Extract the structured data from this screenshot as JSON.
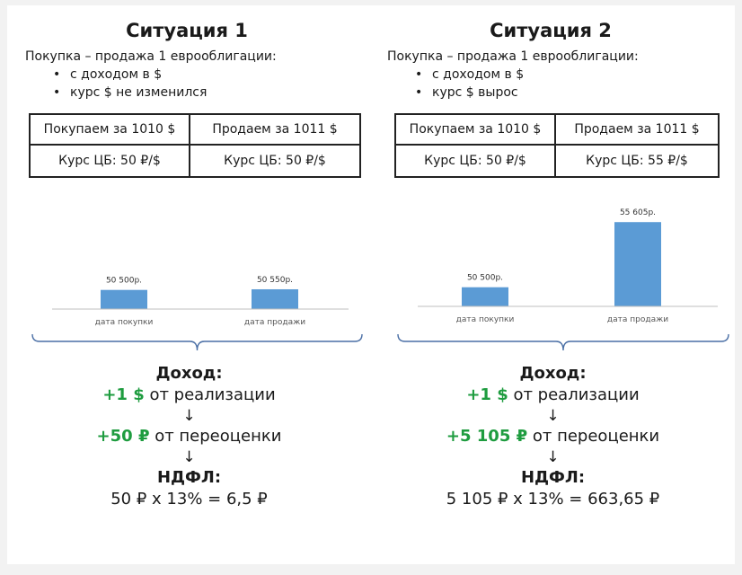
{
  "situations": [
    {
      "title": "Ситуация 1",
      "intro": "Покупка – продажа 1 еврооблигации:",
      "bullets": [
        "с доходом в $",
        "курс $ не изменился"
      ],
      "table": {
        "buy": "Покупаем за 1010 $",
        "sell": "Продаем за 1011 $",
        "rate_buy": "Курс ЦБ: 50 ₽/$",
        "rate_sell": "Курс ЦБ: 50 ₽/$"
      },
      "result": {
        "income_title": "Доход:",
        "sale_amount": "+1 $",
        "sale_text": " от реализации",
        "arrow1": "↓",
        "reval_amount": "+50 ₽",
        "reval_text": " от переоценки",
        "arrow2": "↓",
        "tax_title": "НДФЛ:",
        "tax_formula": "50 ₽ x 13% = 6,5 ₽"
      }
    },
    {
      "title": "Ситуация 2",
      "intro": "Покупка – продажа 1 еврооблигации:",
      "bullets": [
        "с доходом в $",
        "курс $ вырос"
      ],
      "table": {
        "buy": "Покупаем за 1010 $",
        "sell": "Продаем за 1011 $",
        "rate_buy": "Курс ЦБ: 50 ₽/$",
        "rate_sell": "Курс ЦБ: 55 ₽/$"
      },
      "result": {
        "income_title": "Доход:",
        "sale_amount": "+1 $",
        "sale_text": " от реализации",
        "arrow1": "↓",
        "reval_amount": "+5 105 ₽",
        "reval_text": " от переоценки",
        "arrow2": "↓",
        "tax_title": "НДФЛ:",
        "tax_formula": "5 105 ₽ x 13% = 663,65 ₽"
      }
    }
  ],
  "chart_data": [
    {
      "type": "bar",
      "categories": [
        "дата покупки",
        "дата продажи"
      ],
      "values": [
        50500,
        50550
      ],
      "data_labels": [
        "50 500р.",
        "50 550р."
      ],
      "title": "",
      "xlabel": "",
      "ylabel": "",
      "grid": false,
      "bar_color": "#5b9bd5"
    },
    {
      "type": "bar",
      "categories": [
        "дата покупки",
        "дата продажи"
      ],
      "values": [
        50500,
        55605
      ],
      "data_labels": [
        "50 500р.",
        "55 605р."
      ],
      "title": "",
      "xlabel": "",
      "ylabel": "",
      "grid": false,
      "bar_color": "#5b9bd5"
    }
  ]
}
